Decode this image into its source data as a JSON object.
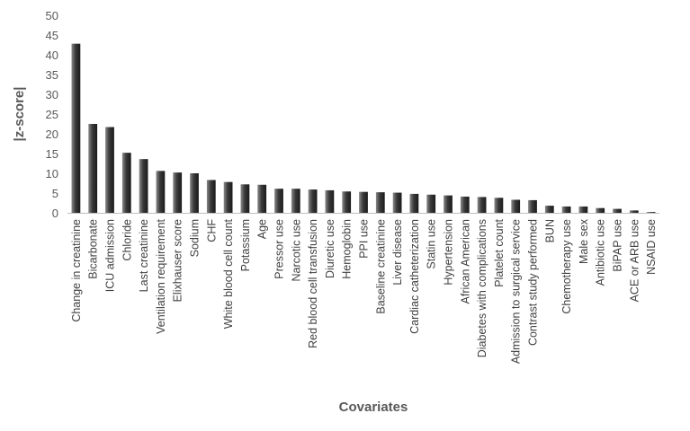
{
  "chart_data": {
    "type": "bar",
    "title": "",
    "xlabel": "Covariates",
    "ylabel": "|z-score|",
    "ylim": [
      0,
      50
    ],
    "yticks": [
      0,
      5,
      10,
      15,
      20,
      25,
      30,
      35,
      40,
      45,
      50
    ],
    "grid": false,
    "legend": "none",
    "bar_color": "#3a3a3a",
    "categories": [
      "Change in creatinine",
      "Bicarbonate",
      "ICU admission",
      "Chloride",
      "Last creatinine",
      "Ventilation requirement",
      "Elixhauser score",
      "Sodium",
      "CHF",
      "White blood cell count",
      "Potassium",
      "Age",
      "Pressor use",
      "Narcotic use",
      "Red blood cell transfusion",
      "Diuretic use",
      "Hemoglobin",
      "PPI use",
      "Baseline creatinine",
      "Liver disease",
      "Cardiac catheterization",
      "Statin use",
      "Hypertension",
      "African American",
      "Diabetes with complications",
      "Platelet count",
      "Admission to surgical service",
      "Contrast study performed",
      "BUN",
      "Chemotherapy use",
      "Male sex",
      "Antibiotic use",
      "BiPAP use",
      "ACE or ARB use",
      "NSAID use"
    ],
    "values": [
      42.8,
      22.5,
      21.7,
      15.2,
      13.6,
      10.6,
      10.2,
      10.0,
      8.3,
      7.8,
      7.2,
      7.1,
      6.1,
      6.1,
      5.9,
      5.7,
      5.4,
      5.3,
      5.2,
      5.1,
      4.8,
      4.6,
      4.4,
      4.1,
      4.0,
      3.8,
      3.3,
      3.2,
      1.8,
      1.6,
      1.6,
      1.2,
      1.0,
      0.6,
      0.2
    ]
  }
}
